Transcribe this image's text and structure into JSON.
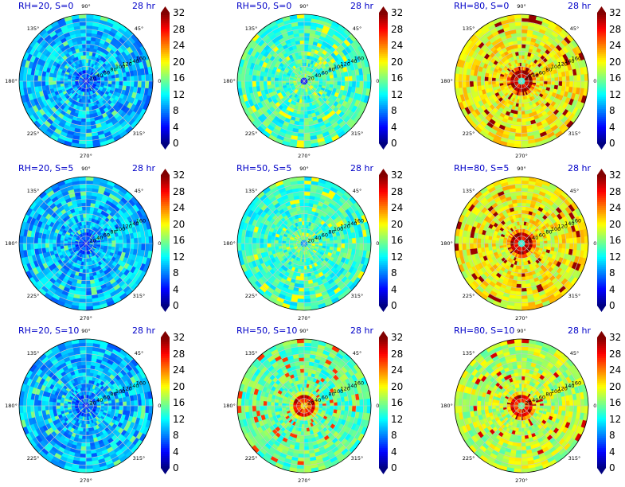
{
  "figure": {
    "angle_labels": [
      "90°",
      "45°",
      "0°",
      "315°",
      "270°",
      "225°",
      "180°",
      "135°"
    ],
    "radial_labels": [
      "20",
      "40",
      "60",
      "80",
      "100",
      "120",
      "140",
      "160"
    ],
    "colorbar_ticks": [
      "0",
      "4",
      "8",
      "12",
      "16",
      "20",
      "24",
      "28",
      "32"
    ],
    "colormap": "jet",
    "colors": {
      "title": "#0000c8",
      "grid": "#c8c8c8"
    }
  },
  "panels": [
    {
      "title": "RH=20, S=0",
      "time": "28 hr"
    },
    {
      "title": "RH=50, S=0",
      "time": "28 hr"
    },
    {
      "title": "RH=80, S=0",
      "time": "28 hr"
    },
    {
      "title": "RH=20, S=5",
      "time": "28 hr"
    },
    {
      "title": "RH=50, S=5",
      "time": "28 hr"
    },
    {
      "title": "RH=80, S=5",
      "time": "28 hr"
    },
    {
      "title": "RH=20, S=10",
      "time": "28 hr"
    },
    {
      "title": "RH=50, S=10",
      "time": "28 hr"
    },
    {
      "title": "RH=80, S=10",
      "time": "28 hr"
    }
  ],
  "chart_data": {
    "type": "heatmap",
    "projection": "polar",
    "layout": "3x3 grid",
    "angular_ticks_deg": [
      90,
      45,
      0,
      315,
      270,
      225,
      180,
      135
    ],
    "radial_ticks": [
      20,
      40,
      60,
      80,
      100,
      120,
      140,
      160
    ],
    "radial_range": [
      0,
      180
    ],
    "color_range": [
      0,
      32
    ],
    "colorbar_ticks": [
      0,
      4,
      8,
      12,
      16,
      20,
      24,
      28,
      32
    ],
    "colormap": "jet",
    "panels": [
      {
        "title": "RH=20, S=0",
        "time": "28 hr",
        "center_value": 4,
        "core_peak": 6,
        "background": 10,
        "max_value": 16
      },
      {
        "title": "RH=50, S=0",
        "time": "28 hr",
        "center_value": 3,
        "core_peak": 16,
        "background": 14,
        "max_value": 20
      },
      {
        "title": "RH=80, S=0",
        "time": "28 hr",
        "center_value": 12,
        "core_peak": 32,
        "background": 20,
        "max_value": 32
      },
      {
        "title": "RH=20, S=5",
        "time": "28 hr",
        "center_value": 4,
        "core_peak": 6,
        "background": 10,
        "max_value": 16
      },
      {
        "title": "RH=50, S=5",
        "time": "28 hr",
        "center_value": 8,
        "core_peak": 16,
        "background": 14,
        "max_value": 20
      },
      {
        "title": "RH=80, S=5",
        "time": "28 hr",
        "center_value": 12,
        "core_peak": 32,
        "background": 20,
        "max_value": 32
      },
      {
        "title": "RH=20, S=10",
        "time": "28 hr",
        "center_value": 4,
        "core_peak": 6,
        "background": 10,
        "max_value": 16
      },
      {
        "title": "RH=50, S=10",
        "time": "28 hr",
        "center_value": 20,
        "core_peak": 30,
        "background": 15,
        "max_value": 30
      },
      {
        "title": "RH=80, S=10",
        "time": "28 hr",
        "center_value": 14,
        "core_peak": 30,
        "background": 18,
        "max_value": 32
      }
    ]
  }
}
